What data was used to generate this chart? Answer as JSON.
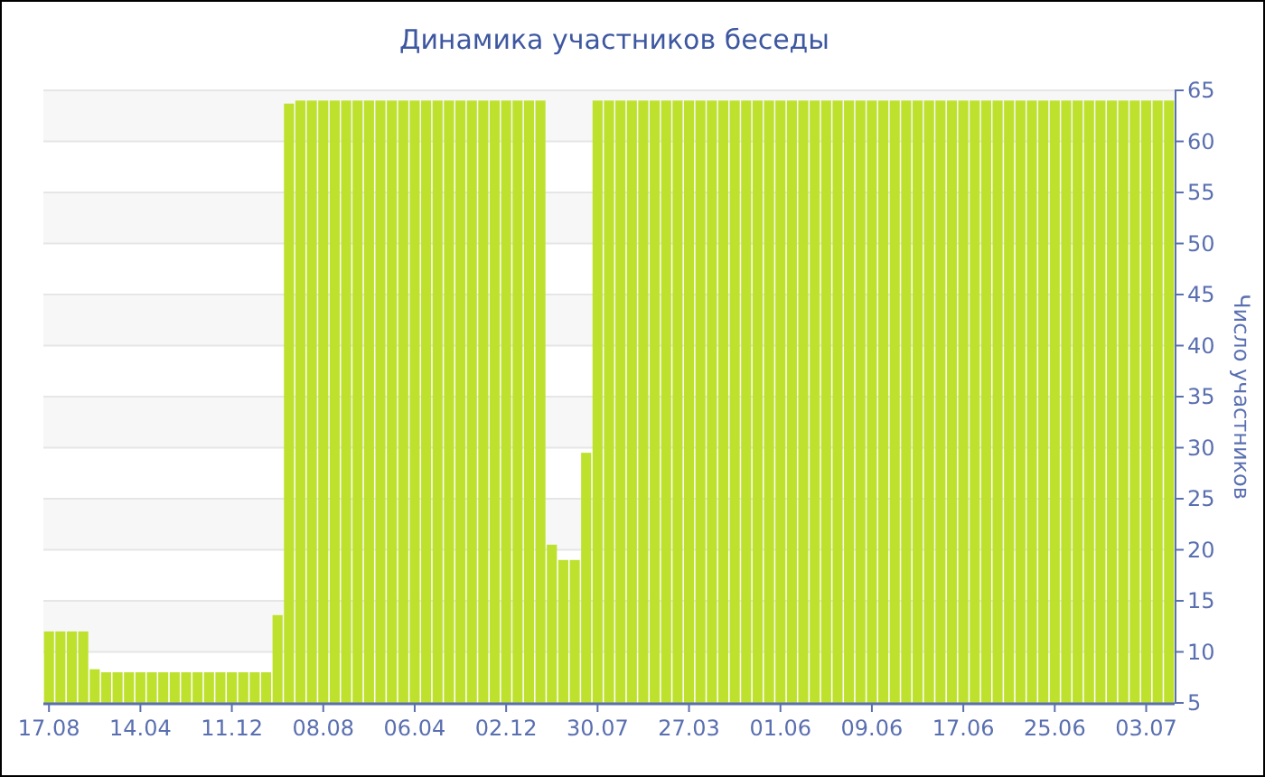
{
  "chart_data": {
    "type": "bar",
    "title": "Динамика участников беседы",
    "ylabel": "Число участников",
    "categories": [
      "17.08",
      null,
      null,
      null,
      null,
      null,
      null,
      null,
      "14.04",
      null,
      null,
      null,
      null,
      null,
      null,
      null,
      "11.12",
      null,
      null,
      null,
      null,
      null,
      null,
      null,
      "08.08",
      null,
      null,
      null,
      null,
      null,
      null,
      null,
      "06.04",
      null,
      null,
      null,
      null,
      null,
      null,
      null,
      "02.12",
      null,
      null,
      null,
      null,
      null,
      null,
      null,
      "30.07",
      null,
      null,
      null,
      null,
      null,
      null,
      null,
      "27.03",
      null,
      null,
      null,
      null,
      null,
      null,
      null,
      "01.06",
      null,
      null,
      null,
      null,
      null,
      null,
      null,
      "09.06",
      null,
      null,
      null,
      null,
      null,
      null,
      null,
      "17.06",
      null,
      null,
      null,
      null,
      null,
      null,
      null,
      "25.06",
      null,
      null,
      null,
      null,
      null,
      null,
      null,
      "03.07",
      null,
      null
    ],
    "values": [
      12,
      12,
      12,
      12,
      8.3,
      8,
      8,
      8,
      8,
      8,
      8,
      8,
      8,
      8,
      8,
      8,
      8,
      8,
      8,
      8,
      13.6,
      63.7,
      64,
      64,
      64,
      64,
      64,
      64,
      64,
      64,
      64,
      64,
      64,
      64,
      64,
      64,
      64,
      64,
      64,
      64,
      64,
      64,
      64,
      64,
      20.5,
      19,
      19,
      29.5,
      64,
      64,
      64,
      64,
      64,
      64,
      64,
      64,
      64,
      64,
      64,
      64,
      64,
      64,
      64,
      64,
      64,
      64,
      64,
      64,
      64,
      64,
      64,
      64,
      64,
      64,
      64,
      64,
      64,
      64,
      64,
      64,
      64,
      64,
      64,
      64,
      64,
      64,
      64,
      64,
      64,
      64,
      64,
      64,
      64,
      64,
      64,
      64,
      64,
      64,
      64
    ],
    "color": "#bee12e",
    "ylim": [
      5,
      65
    ],
    "yticks": [
      5,
      10,
      15,
      20,
      25,
      30,
      35,
      40,
      45,
      50,
      55,
      60,
      65
    ],
    "grid": "y"
  }
}
